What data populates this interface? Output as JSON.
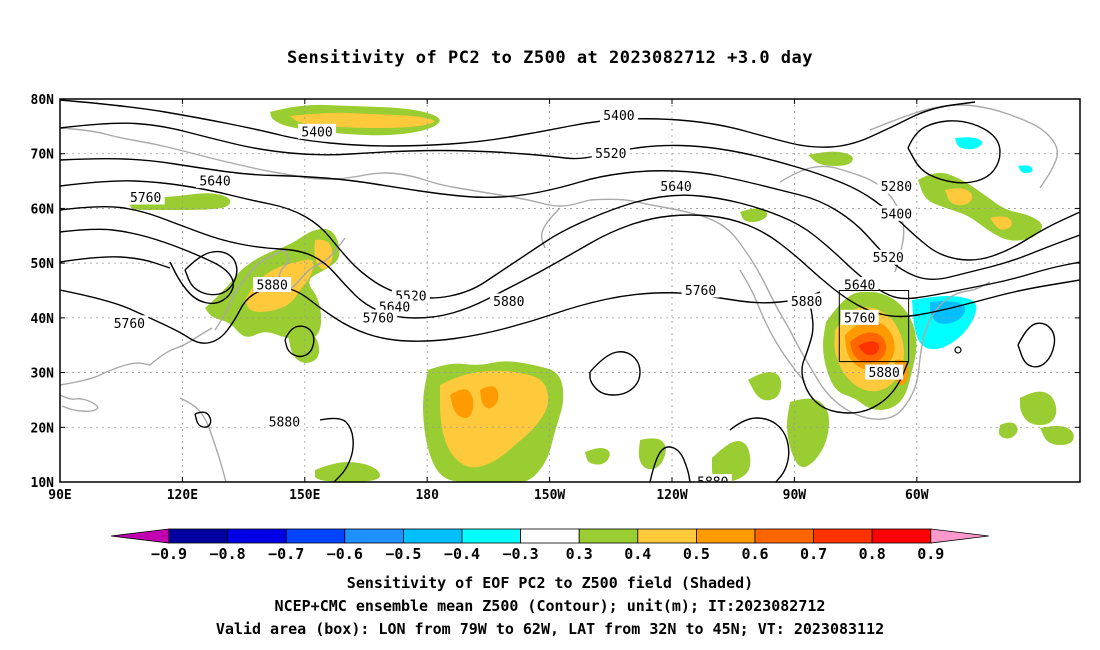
{
  "title": "Sensitivity of PC2 to Z500 at 2023082712 +3.0 day",
  "map": {
    "lat_labels": [
      "80N",
      "70N",
      "60N",
      "50N",
      "40N",
      "30N",
      "20N",
      "10N"
    ],
    "lon_labels": [
      "90E",
      "120E",
      "150E",
      "180",
      "150W",
      "120W",
      "90W",
      "60W"
    ],
    "lon_range": [
      90,
      340
    ],
    "lat_range": [
      10,
      80
    ],
    "valid_box": {
      "lon": [
        281,
        298
      ],
      "lat": [
        32,
        45
      ]
    },
    "contour_color": "#000000",
    "coast_color": "#a9a9a9",
    "contour_labels": [
      {
        "text": "5400",
        "lon": 153,
        "lat": 74
      },
      {
        "text": "5400",
        "lon": 227,
        "lat": 77
      },
      {
        "text": "5520",
        "lon": 225,
        "lat": 70
      },
      {
        "text": "5640",
        "lon": 241,
        "lat": 64
      },
      {
        "text": "5640",
        "lon": 128,
        "lat": 65
      },
      {
        "text": "5760",
        "lon": 111,
        "lat": 62
      },
      {
        "text": "5760",
        "lon": 107,
        "lat": 39
      },
      {
        "text": "5880",
        "lon": 142,
        "lat": 46
      },
      {
        "text": "5520",
        "lon": 176,
        "lat": 44
      },
      {
        "text": "5640",
        "lon": 172,
        "lat": 42
      },
      {
        "text": "5760",
        "lon": 168,
        "lat": 40
      },
      {
        "text": "5880",
        "lon": 200,
        "lat": 43
      },
      {
        "text": "5760",
        "lon": 247,
        "lat": 45
      },
      {
        "text": "5880",
        "lon": 273,
        "lat": 43
      },
      {
        "text": "5640",
        "lon": 286,
        "lat": 46
      },
      {
        "text": "5760",
        "lon": 286,
        "lat": 40
      },
      {
        "text": "5880",
        "lon": 292,
        "lat": 30
      },
      {
        "text": "5280",
        "lon": 295,
        "lat": 64
      },
      {
        "text": "5400",
        "lon": 295,
        "lat": 59
      },
      {
        "text": "5520",
        "lon": 293,
        "lat": 51
      },
      {
        "text": "5880",
        "lon": 145,
        "lat": 21
      },
      {
        "text": "5880",
        "lon": 250,
        "lat": 10
      }
    ]
  },
  "colorbar": {
    "labels": [
      "−0.9",
      "−0.8",
      "−0.7",
      "−0.6",
      "−0.5",
      "−0.4",
      "−0.3",
      "0.3",
      "0.4",
      "0.5",
      "0.6",
      "0.7",
      "0.8",
      "0.9"
    ],
    "colors": [
      "#c000b0",
      "#0000a0",
      "#0000e6",
      "#0044ff",
      "#1e90ff",
      "#00bfff",
      "#00ffff",
      "#ffffff",
      "#9acd32",
      "#ffc93c",
      "#ff9a00",
      "#ff6600",
      "#ff3300",
      "#ff0000",
      "#ff99cc"
    ]
  },
  "caption": {
    "line1": "Sensitivity of EOF PC2 to Z500 field (Shaded)",
    "line2": "NCEP+CMC ensemble mean Z500 (Contour); unit(m); IT:2023082712",
    "line3": "Valid area (box): LON from 79W to 62W, LAT from 32N to 45N; VT: 2023083112"
  }
}
